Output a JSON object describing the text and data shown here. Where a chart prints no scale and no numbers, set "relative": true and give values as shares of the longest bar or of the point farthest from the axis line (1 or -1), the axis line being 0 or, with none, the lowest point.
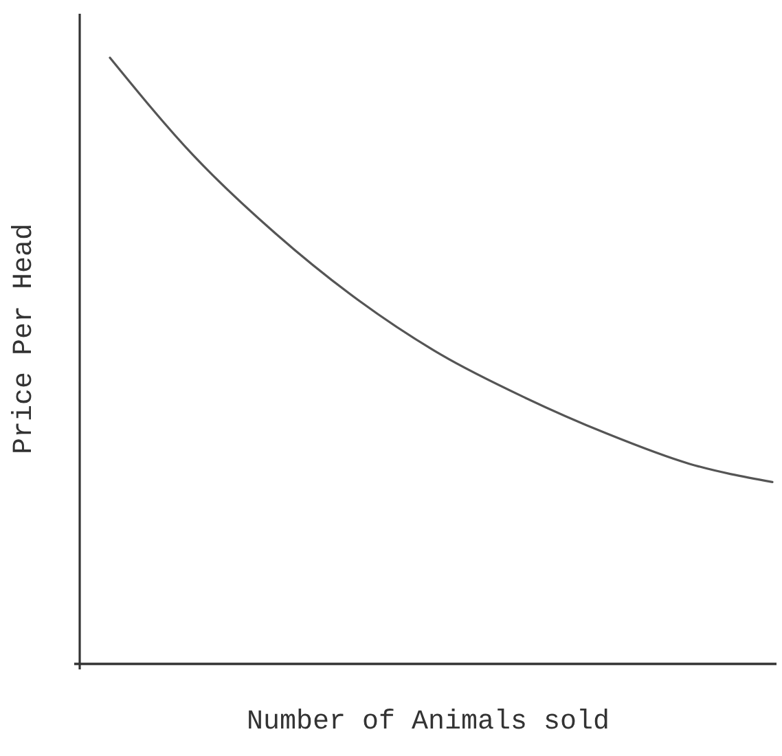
{
  "chart_data": {
    "type": "line",
    "xlabel": "Number of Animals sold",
    "ylabel": "Price Per Head",
    "categories": [
      null,
      null,
      null,
      null,
      null,
      null,
      null,
      null,
      null
    ],
    "values": [
      1,
      0.84,
      0.71,
      0.6,
      0.51,
      0.44,
      0.38,
      0.33,
      0.3
    ],
    "color": "#555555",
    "relative": true
  }
}
